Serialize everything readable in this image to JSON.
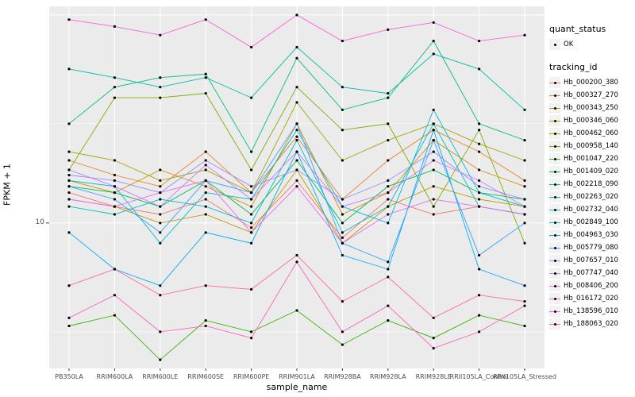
{
  "y_axis": {
    "label": "FPKM + 1",
    "tick_label": "10"
  },
  "x_axis": {
    "label": "sample_name"
  },
  "legend": {
    "quant_status_title": "quant_status",
    "quant_status_items": [
      {
        "label": "OK"
      }
    ],
    "tracking_title": "tracking_id"
  },
  "style": {
    "panel_bg": "#EBEBEB",
    "grid_color": "#FFFFFF",
    "point_color": "#000000",
    "tick_color": "#333333",
    "tick_text_color": "#4D4D4D"
  },
  "chart_data": {
    "type": "line",
    "x_label": "sample_name",
    "y_label": "FPKM + 1",
    "y_scale": "log10",
    "ylim": [
      2,
      110
    ],
    "grid": true,
    "legend_position": "right",
    "point_marker": "black dot (quant_status OK)",
    "x": [
      "PB350LA",
      "RRIM600LA",
      "RRIM600LE",
      "RRIM600SE",
      "RRIM600PE",
      "RRIM901LA",
      "RRIM928BA",
      "RRIM928LA",
      "RRIM928LE",
      "RRII105LA_Control",
      "RRII105LA_Stressed"
    ],
    "series": [
      {
        "name": "Hb_000200_380",
        "color": "#F8766D",
        "values": [
          14,
          12,
          11,
          13,
          9.5,
          16,
          8.5,
          13,
          11,
          12,
          11
        ]
      },
      {
        "name": "Hb_000327_270",
        "color": "#EA8331",
        "values": [
          20,
          17,
          15,
          22,
          14,
          26,
          13,
          20,
          28,
          22,
          16
        ]
      },
      {
        "name": "Hb_000343_250",
        "color": "#D89000",
        "values": [
          16,
          14,
          18,
          15,
          12,
          30,
          11,
          14,
          25,
          18,
          15
        ]
      },
      {
        "name": "Hb_000346_060",
        "color": "#C09B00",
        "values": [
          13,
          12,
          10,
          11,
          9,
          18,
          8,
          12,
          15,
          13,
          12
        ]
      },
      {
        "name": "Hb_000462_060",
        "color": "#A3A500",
        "values": [
          22,
          20,
          16,
          18,
          14,
          38,
          20,
          25,
          30,
          24,
          20
        ]
      },
      {
        "name": "Hb_000958_140",
        "color": "#7CAE00",
        "values": [
          18,
          40,
          40,
          42,
          18,
          45,
          28,
          30,
          12,
          28,
          8
        ]
      },
      {
        "name": "Hb_001047_220",
        "color": "#39B600",
        "values": [
          3.2,
          3.6,
          2.2,
          3.4,
          3,
          3.8,
          2.6,
          3.4,
          2.8,
          3.6,
          3.2
        ]
      },
      {
        "name": "Hb_001409_020",
        "color": "#00BB4E",
        "values": [
          15,
          14,
          12,
          16,
          11,
          20,
          10,
          15,
          18,
          14,
          13
        ]
      },
      {
        "name": "Hb_002218_090",
        "color": "#00BF7D",
        "values": [
          30,
          45,
          50,
          52,
          22,
          62,
          35,
          40,
          75,
          30,
          25
        ]
      },
      {
        "name": "Hb_002263_020",
        "color": "#00C1A3",
        "values": [
          55,
          50,
          45,
          50,
          40,
          70,
          45,
          42,
          65,
          55,
          35
        ]
      },
      {
        "name": "Hb_002732_040",
        "color": "#00BFC4",
        "values": [
          12,
          11,
          13,
          12,
          10,
          25,
          9,
          12,
          30,
          12,
          11
        ]
      },
      {
        "name": "Hb_002849_100",
        "color": "#00BAE0",
        "values": [
          16,
          15,
          8,
          14,
          13,
          28,
          12,
          10,
          35,
          14,
          12
        ]
      },
      {
        "name": "Hb_004963_030",
        "color": "#00B0F6",
        "values": [
          9,
          6,
          5,
          9,
          8,
          22,
          7,
          6,
          28,
          6,
          5
        ]
      },
      {
        "name": "Hb_005779_080",
        "color": "#35A2FF",
        "values": [
          15,
          13,
          9,
          16,
          14,
          30,
          8,
          6.5,
          25,
          7,
          10
        ]
      },
      {
        "name": "Hb_007657_010",
        "color": "#9590FF",
        "values": [
          17,
          16,
          14,
          20,
          15,
          18,
          13,
          16,
          22,
          15,
          13
        ]
      },
      {
        "name": "Hb_007747_040",
        "color": "#C77CFF",
        "values": [
          18,
          15,
          12,
          19,
          13,
          22,
          12,
          14,
          20,
          16,
          12
        ]
      },
      {
        "name": "Hb_008406_200",
        "color": "#E76BF3",
        "values": [
          13,
          12,
          14,
          16,
          9,
          15,
          8,
          11,
          13,
          12,
          11
        ]
      },
      {
        "name": "Hb_016172_020",
        "color": "#FA62DB",
        "values": [
          95,
          88,
          80,
          95,
          70,
          100,
          75,
          85,
          92,
          75,
          80
        ]
      },
      {
        "name": "Hb_138596_010",
        "color": "#FF62BC",
        "values": [
          3.5,
          4.5,
          3,
          3.2,
          2.8,
          6.5,
          3,
          4,
          2.5,
          3,
          4
        ]
      },
      {
        "name": "Hb_188063_020",
        "color": "#FF6A98",
        "values": [
          5,
          6,
          4.5,
          5,
          4.8,
          7,
          4.2,
          5.5,
          3.5,
          4.5,
          4.2
        ]
      }
    ]
  }
}
